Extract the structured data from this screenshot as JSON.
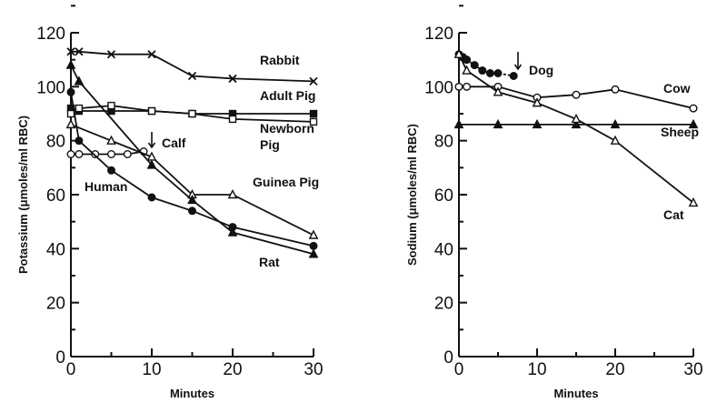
{
  "chart_data": [
    {
      "type": "line",
      "xlabel": "Minutes",
      "ylabel": "Potassium (μmoles/ml RBC)",
      "xlim": [
        0,
        30
      ],
      "ylim": [
        0,
        120
      ],
      "xticks": [
        "0",
        "10",
        "20",
        "30"
      ],
      "yticks": [
        "0",
        "20",
        "40",
        "60",
        "80",
        "100",
        "120"
      ],
      "grid": false,
      "series": [
        {
          "name": "Rabbit",
          "marker": "x",
          "x": [
            0,
            1,
            5,
            10,
            15,
            20,
            30
          ],
          "y": [
            113,
            113,
            112,
            112,
            104,
            103,
            102
          ]
        },
        {
          "name": "Adult Pig",
          "marker": "square-filled",
          "x": [
            0,
            1,
            5,
            10,
            15,
            20,
            30
          ],
          "y": [
            92,
            91,
            91,
            91,
            90,
            90,
            90
          ]
        },
        {
          "name": "Newborn Pig",
          "marker": "square-open",
          "x": [
            0,
            1,
            5,
            10,
            15,
            20,
            30
          ],
          "y": [
            90,
            92,
            93,
            91,
            90,
            88,
            87
          ]
        },
        {
          "name": "Calf",
          "marker": "circle-open",
          "x": [
            0,
            1,
            3,
            5,
            7,
            9
          ],
          "y": [
            75,
            75,
            75,
            75,
            75,
            76
          ]
        },
        {
          "name": "Guinea Pig",
          "marker": "triangle-open",
          "x": [
            0,
            5,
            10,
            15,
            20,
            30
          ],
          "y": [
            86,
            80,
            74,
            60,
            60,
            45
          ]
        },
        {
          "name": "Human",
          "marker": "circle-filled",
          "x": [
            0,
            1,
            5,
            10,
            15,
            20,
            30
          ],
          "y": [
            98,
            80,
            69,
            59,
            54,
            48,
            41
          ]
        },
        {
          "name": "Rat",
          "marker": "triangle-filled",
          "x": [
            0,
            1,
            10,
            15,
            20,
            30
          ],
          "y": [
            108,
            102,
            71,
            58,
            46,
            38
          ]
        }
      ],
      "annotations": [
        {
          "text": "↓",
          "x": 9.5,
          "y": 78
        }
      ]
    },
    {
      "type": "line",
      "xlabel": "Minutes",
      "ylabel": "Sodium (μmoles/ml RBC)",
      "xlim": [
        0,
        30
      ],
      "ylim": [
        0,
        120
      ],
      "xticks": [
        "0",
        "10",
        "20",
        "30"
      ],
      "yticks": [
        "0",
        "20",
        "40",
        "60",
        "80",
        "100",
        "120"
      ],
      "grid": false,
      "series": [
        {
          "name": "Dog",
          "marker": "circle-filled",
          "x": [
            0,
            0.5,
            1,
            2,
            3,
            4,
            5,
            7
          ],
          "y": [
            112,
            111,
            110,
            108,
            106,
            105,
            105,
            104
          ]
        },
        {
          "name": "Cow",
          "marker": "circle-open",
          "x": [
            0,
            1,
            5,
            10,
            15,
            20,
            30
          ],
          "y": [
            100,
            100,
            100,
            96,
            97,
            99,
            92
          ]
        },
        {
          "name": "Sheep",
          "marker": "triangle-filled",
          "x": [
            0,
            5,
            10,
            15,
            20,
            30
          ],
          "y": [
            86,
            86,
            86,
            86,
            86,
            86
          ]
        },
        {
          "name": "Cat",
          "marker": "triangle-open",
          "x": [
            0,
            1,
            5,
            10,
            15,
            20,
            30
          ],
          "y": [
            112,
            106,
            98,
            94,
            88,
            80,
            57
          ]
        }
      ],
      "annotations": [
        {
          "text": "↓",
          "x": 7.5,
          "y": 110
        }
      ]
    }
  ]
}
